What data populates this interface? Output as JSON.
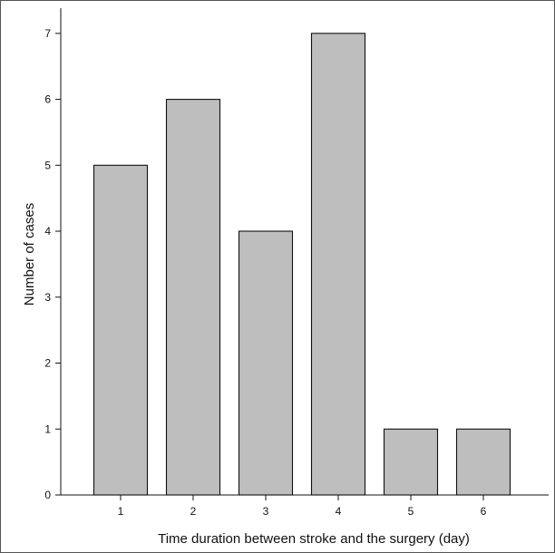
{
  "chart_data": {
    "type": "bar",
    "categories": [
      "1",
      "2",
      "3",
      "4",
      "5",
      "6"
    ],
    "values": [
      5,
      6,
      4,
      7,
      1,
      1
    ],
    "xlabel": "Time duration between stroke and the surgery (day)",
    "ylabel": "Number of cases",
    "ylim": [
      0,
      7.3
    ],
    "yticks": [
      0,
      1,
      2,
      3,
      4,
      5,
      6,
      7
    ],
    "grid": false,
    "legend": "none",
    "colors": {
      "bar_fill": "#bebebf",
      "bar_stroke": "#111111",
      "axis": "#111111"
    }
  }
}
